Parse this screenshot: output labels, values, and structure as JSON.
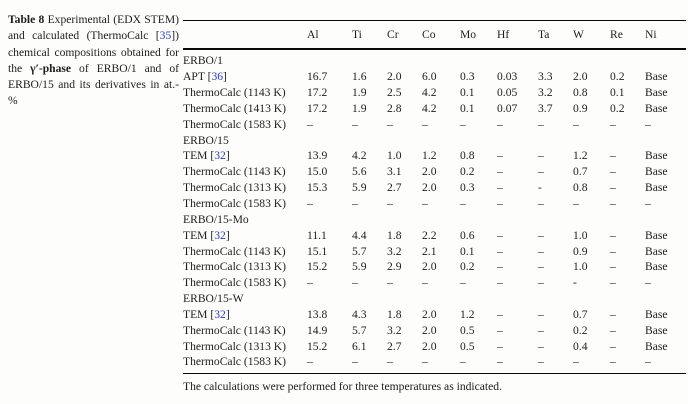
{
  "caption": {
    "label": "Table 8",
    "segments": [
      {
        "t": " Experimental (EDX STEM) and calculated (ThermoCalc ["
      },
      {
        "t": "35",
        "style": "cite"
      },
      {
        "t": "]) chemical compositions obtained for the "
      },
      {
        "t": "γ′-phase",
        "style": "bold"
      },
      {
        "t": " of ERBO/1 and of ERBO/15 and its derivatives in at.-%"
      }
    ]
  },
  "table": {
    "columns": [
      "Al",
      "Ti",
      "Cr",
      "Co",
      "Mo",
      "Hf",
      "Ta",
      "W",
      "Re",
      "Ni"
    ],
    "rows": [
      {
        "section": true,
        "label": "ERBO/1",
        "values": []
      },
      {
        "label_pre": "APT [",
        "cite": "36",
        "label_post": "]",
        "label": "APT [36]",
        "values": [
          "16.7",
          "1.6",
          "2.0",
          "6.0",
          "0.3",
          "0.03",
          "3.3",
          "2.0",
          "0.2",
          "Base"
        ]
      },
      {
        "label": "ThermoCalc (1143 K)",
        "values": [
          "17.2",
          "1.9",
          "2.5",
          "4.2",
          "0.1",
          "0.05",
          "3.2",
          "0.8",
          "0.1",
          "Base"
        ]
      },
      {
        "label": "ThermoCalc (1413 K)",
        "values": [
          "17.2",
          "1.9",
          "2.8",
          "4.2",
          "0.1",
          "0.07",
          "3.7",
          "0.9",
          "0.2",
          "Base"
        ]
      },
      {
        "label": "ThermoCalc (1583 K)",
        "values": [
          "–",
          "–",
          "–",
          "–",
          "–",
          "–",
          "–",
          "–",
          "–",
          "–"
        ]
      },
      {
        "section": true,
        "label": "ERBO/15",
        "values": []
      },
      {
        "label_pre": "TEM [",
        "cite": "32",
        "label_post": "]",
        "label": "TEM [32]",
        "values": [
          "13.9",
          "4.2",
          "1.0",
          "1.2",
          "0.8",
          "–",
          "–",
          "1.2",
          "–",
          "Base"
        ]
      },
      {
        "label": "ThermoCalc (1143 K)",
        "values": [
          "15.0",
          "5.6",
          "3.1",
          "2.0",
          "0.2",
          "–",
          "–",
          "0.7",
          "–",
          "Base"
        ]
      },
      {
        "label": "ThermoCalc (1313 K)",
        "values": [
          "15.3",
          "5.9",
          "2.7",
          "2.0",
          "0.3",
          "–",
          "-",
          "0.8",
          "–",
          "Base"
        ]
      },
      {
        "label": "ThermoCalc (1583 K)",
        "values": [
          "–",
          "–",
          "–",
          "–",
          "–",
          "–",
          "–",
          "–",
          "–",
          "–"
        ]
      },
      {
        "section": true,
        "label": "ERBO/15-Mo",
        "values": []
      },
      {
        "label_pre": "TEM [",
        "cite": "32",
        "label_post": "]",
        "label": "TEM [32]",
        "values": [
          "11.1",
          "4.4",
          "1.8",
          "2.2",
          "0.6",
          "–",
          "–",
          "1.0",
          "–",
          "Base"
        ]
      },
      {
        "label": "ThermoCalc (1143 K)",
        "values": [
          "15.1",
          "5.7",
          "3.2",
          "2.1",
          "0.1",
          "–",
          "–",
          "0.9",
          "–",
          "Base"
        ]
      },
      {
        "label": "ThermoCalc (1313 K)",
        "values": [
          "15.2",
          "5.9",
          "2.9",
          "2.0",
          "0.2",
          "–",
          "–",
          "1.0",
          "–",
          "Base"
        ]
      },
      {
        "label": "ThermoCalc (1583 K)",
        "values": [
          "–",
          "–",
          "–",
          "–",
          "–",
          "–",
          "–",
          "-",
          "–",
          "–"
        ]
      },
      {
        "section": true,
        "label": "ERBO/15-W",
        "values": []
      },
      {
        "label_pre": "TEM [",
        "cite": "32",
        "label_post": "]",
        "label": "TEM [32]",
        "values": [
          "13.8",
          "4.3",
          "1.8",
          "2.0",
          "1.2",
          "–",
          "–",
          "0.7",
          "–",
          "Base"
        ]
      },
      {
        "label": "ThermoCalc (1143 K)",
        "values": [
          "14.9",
          "5.7",
          "3.2",
          "2.0",
          "0.5",
          "–",
          "–",
          "0.2",
          "–",
          "Base"
        ]
      },
      {
        "label": "ThermoCalc (1313 K)",
        "values": [
          "15.2",
          "6.1",
          "2.7",
          "2.0",
          "0.5",
          "–",
          "–",
          "0.4",
          "–",
          "Base"
        ]
      },
      {
        "label": "ThermoCalc (1583 K)",
        "values": [
          "–",
          "–",
          "–",
          "–",
          "–",
          "–",
          "–",
          "–",
          "–",
          "–"
        ]
      }
    ],
    "footnote": "The calculations were performed for three temperatures as indicated."
  },
  "colors": {
    "link": "#2b3bc8",
    "text": "#1d1d1d",
    "rule": "#0a0a0a",
    "background": "#fdfdfc"
  }
}
